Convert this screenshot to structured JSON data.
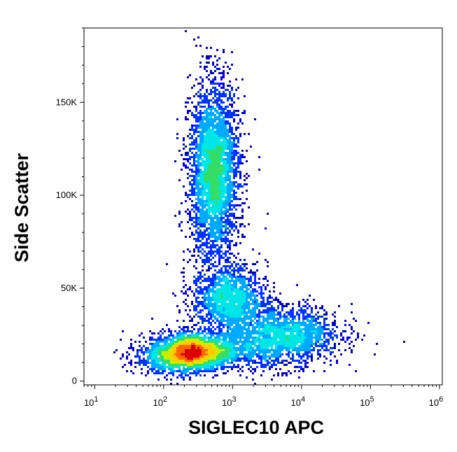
{
  "chart_data": {
    "type": "scatter",
    "style": "density-dot-plot (flow cytometry pseudocolor)",
    "xlabel": "SIGLEC10 APC",
    "ylabel": "Side Scatter",
    "x_scale": "log",
    "y_scale": "linear",
    "xlim": [
      7,
      1100000
    ],
    "ylim": [
      -2000,
      190000
    ],
    "x_ticks": [
      {
        "value": 10,
        "base": "10",
        "exp": "1"
      },
      {
        "value": 100,
        "base": "10",
        "exp": "2"
      },
      {
        "value": 1000,
        "base": "10",
        "exp": "3"
      },
      {
        "value": 10000,
        "base": "10",
        "exp": "4"
      },
      {
        "value": 100000,
        "base": "10",
        "exp": "5"
      },
      {
        "value": 1000000,
        "base": "10",
        "exp": "6"
      }
    ],
    "y_ticks": [
      {
        "value": 0,
        "label": "0"
      },
      {
        "value": 50000,
        "label": "50K"
      },
      {
        "value": 100000,
        "label": "100K"
      },
      {
        "value": 150000,
        "label": "150K"
      }
    ],
    "grid": false,
    "legend": "none",
    "colormap": [
      "#0000cc",
      "#0033ff",
      "#00aaff",
      "#00e5e5",
      "#33dd66",
      "#ccee00",
      "#ffcc00",
      "#ff6600",
      "#dd0000"
    ],
    "populations": [
      {
        "x_center": 270,
        "y_center": 16000,
        "x_spread_decades": 0.3,
        "y_spread": 5000,
        "weight": 2400,
        "peak_density": 1.0
      },
      {
        "x_center": 540,
        "y_center": 112000,
        "x_spread_decades": 0.18,
        "y_spread": 24000,
        "weight": 3400,
        "peak_density": 0.55
      },
      {
        "x_center": 900,
        "y_center": 44000,
        "x_spread_decades": 0.27,
        "y_spread": 9000,
        "weight": 1500,
        "peak_density": 0.45
      },
      {
        "x_center": 6000,
        "y_center": 27000,
        "x_spread_decades": 0.4,
        "y_spread": 7000,
        "weight": 1300,
        "peak_density": 0.35
      },
      {
        "x_center": 3000,
        "y_center": 18000,
        "x_spread_decades": 0.45,
        "y_spread": 6000,
        "weight": 900,
        "peak_density": 0.25
      },
      {
        "x_center": 150,
        "y_center": 12000,
        "x_spread_decades": 0.3,
        "y_spread": 4000,
        "weight": 700,
        "peak_density": 0.3
      }
    ]
  }
}
